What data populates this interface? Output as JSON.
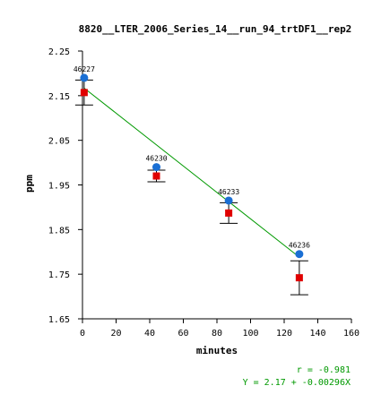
{
  "chart_data": {
    "type": "scatter",
    "title": "8820__LTER_2006_Series_14__run_94_trtDF1__rep2",
    "xlabel": "minutes",
    "ylabel": "ppm",
    "xlim": [
      0,
      160
    ],
    "ylim": [
      1.65,
      2.25
    ],
    "x_ticks": [
      0,
      20,
      40,
      60,
      80,
      100,
      120,
      140,
      160
    ],
    "y_ticks": [
      "1.65",
      "1.75",
      "1.85",
      "1.95",
      "2.05",
      "2.15",
      "2.25"
    ],
    "grid": false,
    "series": [
      {
        "marker": "circle",
        "color": "#1a6fd4",
        "points": [
          {
            "x": 1,
            "y": 2.19,
            "label": "46227"
          },
          {
            "x": 44,
            "y": 1.99,
            "label": "46230"
          },
          {
            "x": 87,
            "y": 1.915,
            "label": "46233"
          },
          {
            "x": 129,
            "y": 1.795,
            "label": "46236"
          }
        ]
      },
      {
        "marker": "square",
        "color": "#e00000",
        "points": [
          {
            "x": 1,
            "y": 2.157,
            "err": 0.028
          },
          {
            "x": 44,
            "y": 1.97,
            "err": 0.013
          },
          {
            "x": 87,
            "y": 1.887,
            "err": 0.023
          },
          {
            "x": 129,
            "y": 1.742,
            "err": 0.038
          }
        ]
      }
    ],
    "fit": {
      "color": "#009900",
      "intercept": 2.17,
      "slope": -0.00296,
      "x_range": [
        1,
        129
      ],
      "r_text": "r = -0.981",
      "eq_text": "Y = 2.17 + -0.00296X"
    }
  }
}
